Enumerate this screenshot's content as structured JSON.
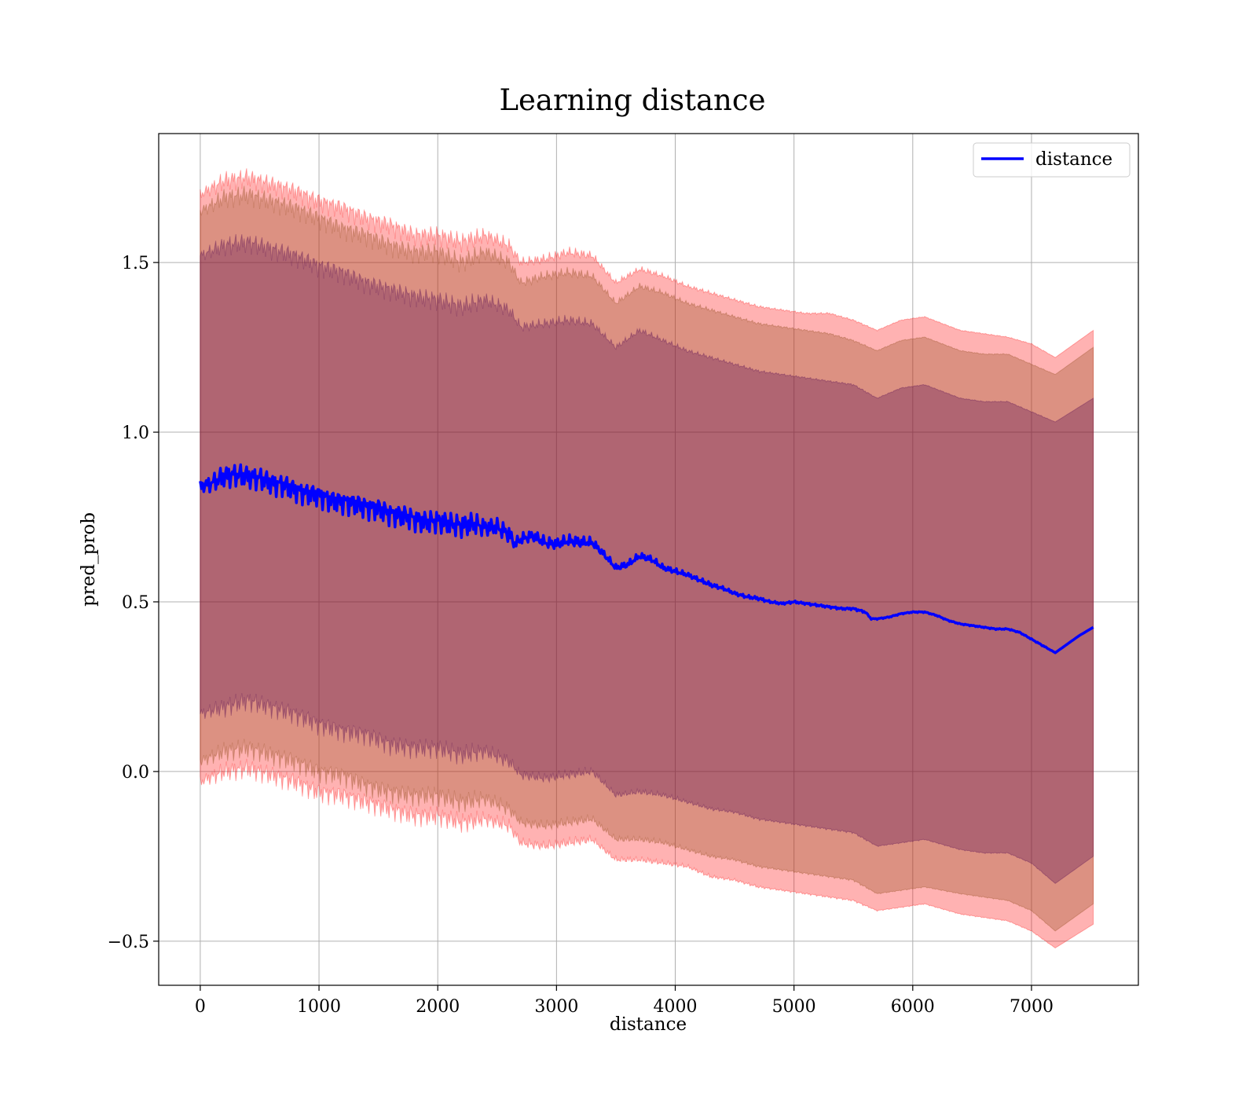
{
  "chart_data": {
    "type": "line",
    "title": "Learning distance",
    "xlabel": "distance",
    "ylabel": "pred_prob",
    "xlim": [
      -350,
      7900
    ],
    "ylim": [
      -0.63,
      1.88
    ],
    "xticks": [
      0,
      1000,
      2000,
      3000,
      4000,
      5000,
      6000,
      7000
    ],
    "yticks": [
      -0.5,
      0.0,
      0.5,
      1.0,
      1.5
    ],
    "xtick_labels": [
      "0",
      "1000",
      "2000",
      "3000",
      "4000",
      "5000",
      "6000",
      "7000"
    ],
    "ytick_labels": [
      "−0.5",
      "0.0",
      "0.5",
      "1.0",
      "1.5"
    ],
    "grid": true,
    "legend_position": "top-right",
    "colors": {
      "line": "#0000ff",
      "band_outer": "#ff0000",
      "band_middle": "#8b4513",
      "band_inner": "#4b0050"
    },
    "series": [
      {
        "name": "distance",
        "x": [
          0,
          100,
          200,
          300,
          400,
          500,
          600,
          700,
          800,
          900,
          1000,
          1100,
          1200,
          1300,
          1400,
          1500,
          1600,
          1700,
          1800,
          1900,
          2000,
          2100,
          2200,
          2300,
          2400,
          2500,
          2600,
          2650,
          2700,
          2800,
          2900,
          3000,
          3100,
          3200,
          3300,
          3400,
          3500,
          3600,
          3700,
          3800,
          3900,
          4000,
          4100,
          4200,
          4300,
          4400,
          4500,
          4600,
          4700,
          4800,
          4900,
          5000,
          5100,
          5200,
          5300,
          5400,
          5500,
          5600,
          5650,
          5700,
          5800,
          5900,
          6000,
          6100,
          6200,
          6300,
          6400,
          6500,
          6600,
          6700,
          6800,
          6900,
          7000,
          7100,
          7200,
          7300,
          7400,
          7520
        ],
        "values": [
          0.84,
          0.85,
          0.87,
          0.875,
          0.87,
          0.865,
          0.85,
          0.845,
          0.83,
          0.82,
          0.815,
          0.8,
          0.795,
          0.79,
          0.78,
          0.775,
          0.76,
          0.755,
          0.745,
          0.735,
          0.74,
          0.73,
          0.725,
          0.73,
          0.72,
          0.72,
          0.7,
          0.67,
          0.685,
          0.695,
          0.675,
          0.67,
          0.68,
          0.675,
          0.675,
          0.64,
          0.6,
          0.61,
          0.635,
          0.625,
          0.6,
          0.59,
          0.58,
          0.565,
          0.55,
          0.54,
          0.525,
          0.515,
          0.51,
          0.5,
          0.495,
          0.5,
          0.495,
          0.49,
          0.485,
          0.48,
          0.48,
          0.47,
          0.45,
          0.45,
          0.455,
          0.465,
          0.47,
          0.47,
          0.46,
          0.445,
          0.435,
          0.43,
          0.425,
          0.42,
          0.42,
          0.41,
          0.39,
          0.37,
          0.35,
          0.375,
          0.4,
          0.425
        ],
        "noise": [
          0.01,
          0.015,
          0.02,
          0.02,
          0.02,
          0.02,
          0.02,
          0.02,
          0.02,
          0.02,
          0.02,
          0.02,
          0.02,
          0.02,
          0.02,
          0.02,
          0.02,
          0.02,
          0.02,
          0.02,
          0.02,
          0.02,
          0.02,
          0.02,
          0.015,
          0.015,
          0.015,
          0.01,
          0.01,
          0.01,
          0.01,
          0.01,
          0.01,
          0.01,
          0.008,
          0.006,
          0.006,
          0.006,
          0.006,
          0.006,
          0.005,
          0.005,
          0.004,
          0.004,
          0.004,
          0.003,
          0.003,
          0.003,
          0.003,
          0.002,
          0.002,
          0.002,
          0.002,
          0.002,
          0.002,
          0.002,
          0.002,
          0.002,
          0.001,
          0.001,
          0.001,
          0.001,
          0.001,
          0.001,
          0.001,
          0.001,
          0.001,
          0.001,
          0.001,
          0.001,
          0.001,
          0.001,
          0.001,
          0.001,
          0.0,
          0.0,
          0.0,
          0.0
        ]
      }
    ],
    "bands": [
      {
        "name": "outer",
        "x": [
          0,
          200,
          400,
          600,
          800,
          1000,
          1200,
          1400,
          1600,
          1800,
          2000,
          2200,
          2400,
          2600,
          2700,
          2900,
          3100,
          3300,
          3500,
          3700,
          3900,
          4100,
          4300,
          4500,
          4700,
          4900,
          5100,
          5300,
          5500,
          5700,
          5900,
          6100,
          6400,
          6600,
          6800,
          7000,
          7200,
          7520
        ],
        "upper": [
          1.7,
          1.74,
          1.75,
          1.73,
          1.71,
          1.68,
          1.66,
          1.63,
          1.61,
          1.58,
          1.58,
          1.56,
          1.58,
          1.55,
          1.5,
          1.51,
          1.53,
          1.52,
          1.44,
          1.48,
          1.46,
          1.43,
          1.41,
          1.39,
          1.37,
          1.36,
          1.35,
          1.35,
          1.33,
          1.3,
          1.33,
          1.34,
          1.3,
          1.29,
          1.28,
          1.26,
          1.22,
          1.3
        ],
        "lower": [
          -0.03,
          0.0,
          0.01,
          -0.01,
          -0.03,
          -0.06,
          -0.07,
          -0.09,
          -0.11,
          -0.13,
          -0.13,
          -0.15,
          -0.14,
          -0.16,
          -0.21,
          -0.22,
          -0.21,
          -0.2,
          -0.26,
          -0.26,
          -0.27,
          -0.28,
          -0.31,
          -0.32,
          -0.34,
          -0.35,
          -0.36,
          -0.37,
          -0.38,
          -0.41,
          -0.4,
          -0.39,
          -0.42,
          -0.43,
          -0.44,
          -0.47,
          -0.52,
          -0.45
        ]
      },
      {
        "name": "middle",
        "x": [
          0,
          200,
          400,
          600,
          800,
          1000,
          1200,
          1400,
          1600,
          1800,
          2000,
          2200,
          2400,
          2600,
          2700,
          2900,
          3100,
          3300,
          3500,
          3700,
          3900,
          4100,
          4300,
          4500,
          4700,
          4900,
          5100,
          5300,
          5500,
          5700,
          5900,
          6100,
          6400,
          6600,
          6800,
          7000,
          7200,
          7520
        ],
        "upper": [
          1.65,
          1.69,
          1.7,
          1.68,
          1.66,
          1.63,
          1.6,
          1.58,
          1.55,
          1.53,
          1.53,
          1.5,
          1.53,
          1.5,
          1.44,
          1.46,
          1.47,
          1.46,
          1.38,
          1.43,
          1.41,
          1.38,
          1.36,
          1.34,
          1.32,
          1.31,
          1.3,
          1.29,
          1.27,
          1.24,
          1.27,
          1.28,
          1.24,
          1.23,
          1.23,
          1.2,
          1.17,
          1.25
        ],
        "lower": [
          0.03,
          0.06,
          0.07,
          0.05,
          0.03,
          0.0,
          -0.01,
          -0.04,
          -0.06,
          -0.07,
          -0.07,
          -0.09,
          -0.08,
          -0.11,
          -0.15,
          -0.16,
          -0.15,
          -0.14,
          -0.2,
          -0.2,
          -0.21,
          -0.23,
          -0.25,
          -0.26,
          -0.28,
          -0.29,
          -0.3,
          -0.31,
          -0.32,
          -0.36,
          -0.35,
          -0.34,
          -0.36,
          -0.37,
          -0.38,
          -0.41,
          -0.47,
          -0.39
        ]
      },
      {
        "name": "inner",
        "x": [
          0,
          200,
          400,
          600,
          800,
          1000,
          1200,
          1400,
          1600,
          1800,
          2000,
          2200,
          2400,
          2600,
          2700,
          2900,
          3100,
          3300,
          3500,
          3700,
          3900,
          4100,
          4300,
          4500,
          4700,
          4900,
          5100,
          5300,
          5500,
          5700,
          5900,
          6100,
          6400,
          6600,
          6800,
          7000,
          7200,
          7520
        ],
        "upper": [
          1.52,
          1.55,
          1.56,
          1.54,
          1.52,
          1.49,
          1.47,
          1.44,
          1.42,
          1.4,
          1.39,
          1.37,
          1.39,
          1.36,
          1.31,
          1.32,
          1.33,
          1.32,
          1.25,
          1.3,
          1.27,
          1.24,
          1.22,
          1.2,
          1.18,
          1.17,
          1.16,
          1.15,
          1.14,
          1.1,
          1.13,
          1.14,
          1.1,
          1.09,
          1.09,
          1.06,
          1.03,
          1.1
        ],
        "lower": [
          0.17,
          0.19,
          0.21,
          0.19,
          0.17,
          0.14,
          0.12,
          0.11,
          0.08,
          0.07,
          0.07,
          0.05,
          0.06,
          0.03,
          -0.01,
          -0.02,
          -0.01,
          0.0,
          -0.07,
          -0.06,
          -0.07,
          -0.09,
          -0.11,
          -0.12,
          -0.14,
          -0.15,
          -0.16,
          -0.17,
          -0.18,
          -0.22,
          -0.21,
          -0.2,
          -0.23,
          -0.24,
          -0.24,
          -0.27,
          -0.33,
          -0.25
        ]
      }
    ]
  }
}
